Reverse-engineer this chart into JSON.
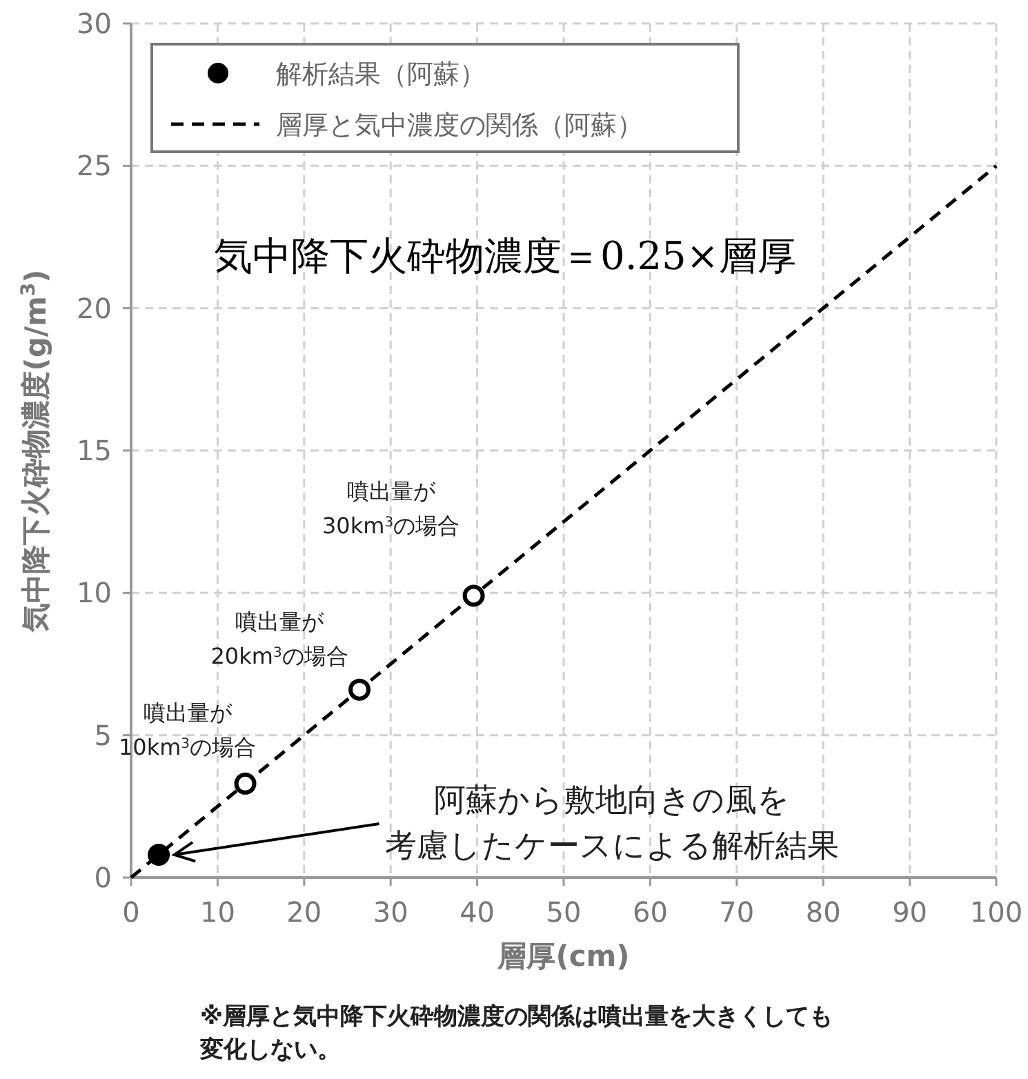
{
  "chart_data": {
    "type": "scatter",
    "xlabel": "層厚(cm)",
    "ylabel": "気中降下火砕物濃度(g/m$^{3}$)",
    "xlim": [
      0,
      100
    ],
    "xticks": [
      0,
      10,
      20,
      30,
      40,
      50,
      60,
      70,
      80,
      90,
      100
    ],
    "ylim": [
      0,
      30
    ],
    "yticks": [
      0,
      5,
      10,
      15,
      20,
      25,
      30
    ],
    "grid": true,
    "legend": "top left",
    "marker": "circle",
    "series": [
      {
        "name": "解析結果（阿蘇）",
        "color": "#000000",
        "x": [
          3.2
        ],
        "values": [
          0.8
        ]
      },
      {
        "color": "#ffffff",
        "x": [
          13.2,
          26.4,
          39.6
        ],
        "values": [
          3.3,
          6.6,
          9.9
        ]
      },
      {
        "name": "層厚と気中濃度の関係（阿蘇）",
        "type": "line",
        "color": "#000000",
        "line_style": "dashed",
        "marker": "none",
        "x": [
          0,
          100
        ],
        "values": [
          0,
          25
        ]
      }
    ],
    "annotations": [
      "気中降下火砕物濃度＝0.25×層厚",
      {
        "text": "噴出量が10km$^{3}$の場合",
        "x": 13.2,
        "y": 3.3
      },
      {
        "text": "噴出量が20km$^{3}$の場合",
        "x": 26.4,
        "y": 6.6
      },
      {
        "text": "噴出量が30km$^{3}$の場合",
        "x": 39.6,
        "y": 9.9
      },
      {
        "text": "阿蘇から敷地向きの風を考慮したケースによる解析結果",
        "x": 5,
        "y": 0.8
      },
      "※層厚と気中降下火砕物濃度の関係は噴出量を大きくしても変化しない。"
    ]
  }
}
